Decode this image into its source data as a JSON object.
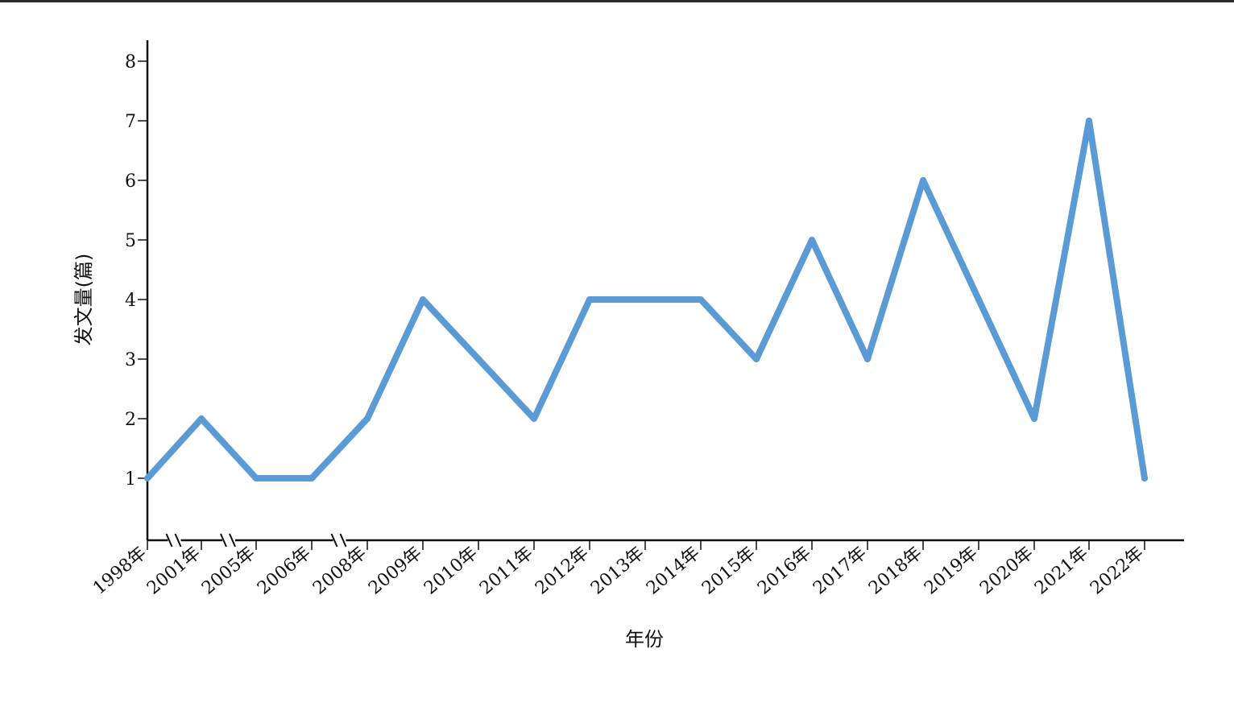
{
  "chart_data": {
    "type": "line",
    "title": "",
    "xlabel": "年份",
    "ylabel": "发文量(篇)",
    "categories": [
      "1998年",
      "2001年",
      "2005年",
      "2006年",
      "2008年",
      "2009年",
      "2010年",
      "2011年",
      "2012年",
      "2013年",
      "2014年",
      "2015年",
      "2016年",
      "2017年",
      "2018年",
      "2019年",
      "2020年",
      "2021年",
      "2022年"
    ],
    "series": [
      {
        "values": [
          1,
          2,
          1,
          1,
          2,
          4,
          3,
          2,
          4,
          4,
          4,
          3,
          5,
          3,
          6,
          4,
          2,
          7,
          1
        ]
      }
    ],
    "y_ticks": [
      1,
      2,
      3,
      4,
      5,
      6,
      7,
      8
    ],
    "ylim": [
      0,
      8.4
    ],
    "x_axis_breaks": [
      "1998年–2001年",
      "2001年–2005年",
      "2006年–2008年"
    ],
    "grid": false,
    "line_color": "#5b9bd5"
  }
}
